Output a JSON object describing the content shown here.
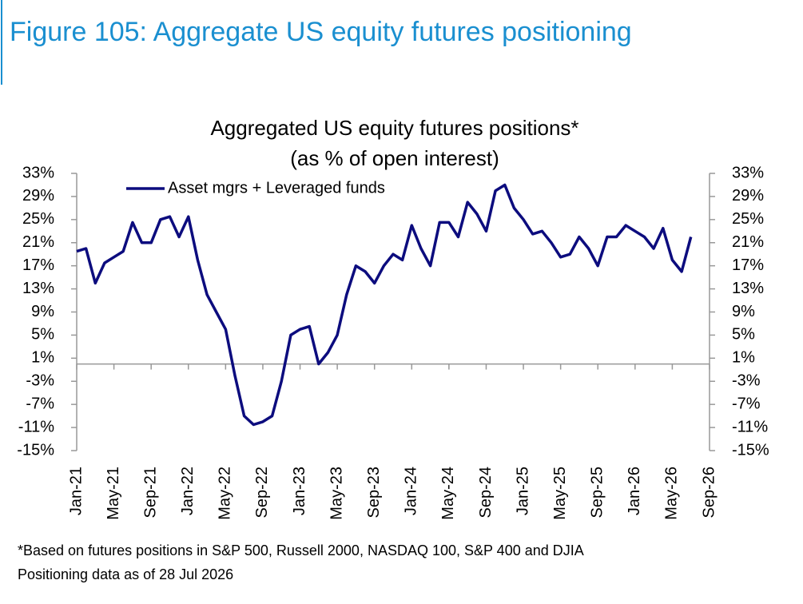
{
  "header": {
    "title": "Figure 105: Aggregate US equity futures positioning"
  },
  "chart_data": {
    "type": "line",
    "title": "Aggregated US equity futures positions*",
    "subtitle": "(as % of open interest)",
    "x": [
      "2021-01",
      "2021-02",
      "2021-03",
      "2021-04",
      "2021-05",
      "2021-06",
      "2021-07",
      "2021-08",
      "2021-09",
      "2021-10",
      "2021-11",
      "2021-12",
      "2022-01",
      "2022-02",
      "2022-03",
      "2022-04",
      "2022-05",
      "2022-06",
      "2022-07",
      "2022-08",
      "2022-09",
      "2022-10",
      "2022-11",
      "2022-12",
      "2023-01",
      "2023-02",
      "2023-03",
      "2023-04",
      "2023-05",
      "2023-06",
      "2023-07",
      "2023-08",
      "2023-09",
      "2023-10",
      "2023-11",
      "2023-12",
      "2024-01",
      "2024-02",
      "2024-03",
      "2024-04",
      "2024-05",
      "2024-06",
      "2024-07",
      "2024-08",
      "2024-09",
      "2024-10",
      "2024-11",
      "2024-12",
      "2025-01",
      "2025-02",
      "2025-03",
      "2025-04",
      "2025-05",
      "2025-06",
      "2025-07",
      "2025-08",
      "2025-09",
      "2025-10",
      "2025-11",
      "2025-12",
      "2026-01",
      "2026-02",
      "2026-03",
      "2026-04",
      "2026-05",
      "2026-06",
      "2026-07"
    ],
    "series": [
      {
        "name": "Asset mgrs + Leveraged funds",
        "color": "#0c0c7e",
        "values": [
          19.5,
          20,
          14,
          17.5,
          18.5,
          19.5,
          24.5,
          21,
          21,
          25,
          25.5,
          22,
          25.5,
          18,
          12,
          9,
          6,
          -2,
          -9,
          -10.5,
          -10,
          -9,
          -3,
          5,
          6,
          6.5,
          0,
          2,
          5,
          12,
          17,
          16,
          14,
          17,
          19,
          18,
          24,
          20,
          17,
          24.5,
          24.5,
          22,
          28,
          26,
          23,
          30,
          31,
          27,
          25,
          22.5,
          23,
          21,
          18.5,
          19,
          22,
          20,
          17,
          22,
          22,
          24,
          23,
          22,
          20,
          23.5,
          18,
          16,
          22
        ]
      }
    ],
    "xlim": [
      "2021-01",
      "2026-09"
    ],
    "xticks": [
      {
        "value": "2021-01",
        "label": "Jan-21"
      },
      {
        "value": "2021-05",
        "label": "May-21"
      },
      {
        "value": "2021-09",
        "label": "Sep-21"
      },
      {
        "value": "2022-01",
        "label": "Jan-22"
      },
      {
        "value": "2022-05",
        "label": "May-22"
      },
      {
        "value": "2022-09",
        "label": "Sep-22"
      },
      {
        "value": "2023-01",
        "label": "Jan-23"
      },
      {
        "value": "2023-05",
        "label": "May-23"
      },
      {
        "value": "2023-09",
        "label": "Sep-23"
      },
      {
        "value": "2024-01",
        "label": "Jan-24"
      },
      {
        "value": "2024-05",
        "label": "May-24"
      },
      {
        "value": "2024-09",
        "label": "Sep-24"
      },
      {
        "value": "2025-01",
        "label": "Jan-25"
      },
      {
        "value": "2025-05",
        "label": "May-25"
      },
      {
        "value": "2025-09",
        "label": "Sep-25"
      },
      {
        "value": "2026-01",
        "label": "Jan-26"
      },
      {
        "value": "2026-05",
        "label": "May-26"
      },
      {
        "value": "2026-09",
        "label": "Sep-26"
      }
    ],
    "ylim": [
      -15,
      33
    ],
    "yticks": [
      {
        "value": -15,
        "label": "-15%"
      },
      {
        "value": -11,
        "label": "-11%"
      },
      {
        "value": -7,
        "label": "-7%"
      },
      {
        "value": -3,
        "label": "-3%"
      },
      {
        "value": 1,
        "label": "1%"
      },
      {
        "value": 5,
        "label": "5%"
      },
      {
        "value": 9,
        "label": "9%"
      },
      {
        "value": 13,
        "label": "13%"
      },
      {
        "value": 17,
        "label": "17%"
      },
      {
        "value": 21,
        "label": "21%"
      },
      {
        "value": 25,
        "label": "25%"
      },
      {
        "value": 29,
        "label": "29%"
      },
      {
        "value": 33,
        "label": "33%"
      }
    ],
    "y2lim": [
      -15,
      33
    ],
    "y2ticks": [
      {
        "value": -15,
        "label": "-15%"
      },
      {
        "value": -11,
        "label": "-11%"
      },
      {
        "value": -7,
        "label": "-7%"
      },
      {
        "value": -3,
        "label": "-3%"
      },
      {
        "value": 1,
        "label": "1%"
      },
      {
        "value": 5,
        "label": "5%"
      },
      {
        "value": 9,
        "label": "9%"
      },
      {
        "value": 13,
        "label": "13%"
      },
      {
        "value": 17,
        "label": "17%"
      },
      {
        "value": 21,
        "label": "21%"
      },
      {
        "value": 25,
        "label": "25%"
      },
      {
        "value": 29,
        "label": "29%"
      },
      {
        "value": 33,
        "label": "33%"
      }
    ],
    "notes": [
      "*Based on futures positions in S&P 500, Russell 2000, NASDAQ 100, S&P 400 and DJIA",
      "Positioning data as of 28 Jul 2026"
    ]
  }
}
